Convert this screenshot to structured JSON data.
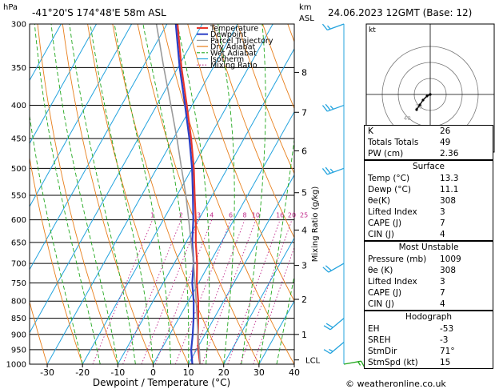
{
  "header": {
    "location": "-41°20'S  174°48'E  58m  ASL",
    "datetime": "24.06.2023  12GMT  (Base: 12)",
    "pressure_unit": "hPa",
    "height_unit_km": "km",
    "height_unit_asl": "ASL",
    "watermark": "© weatheronline.co.uk"
  },
  "chart_data": {
    "type": "line",
    "xlabel": "Dewpoint / Temperature (°C)",
    "ylabel_right": "Mixing Ratio (g/kg)",
    "pressure_levels": [
      300,
      350,
      400,
      450,
      500,
      550,
      600,
      650,
      700,
      750,
      800,
      850,
      900,
      950,
      1000
    ],
    "x_ticks": [
      -30,
      -20,
      -10,
      0,
      10,
      20,
      30,
      40
    ],
    "xlim": [
      -35,
      40
    ],
    "ylim": [
      1000,
      300
    ],
    "km_ticks": [
      {
        "km": "1",
        "p": 900
      },
      {
        "km": "2",
        "p": 795
      },
      {
        "km": "3",
        "p": 705
      },
      {
        "km": "4",
        "p": 622
      },
      {
        "km": "5",
        "p": 545
      },
      {
        "km": "6",
        "p": 470
      },
      {
        "km": "7",
        "p": 410
      },
      {
        "km": "8",
        "p": 356
      }
    ],
    "lcl": {
      "label": "LCL",
      "p": 985
    },
    "mixing_ratio_labels": [
      "1",
      "2",
      "3",
      "4",
      "6",
      "8",
      "10",
      "16",
      "20",
      "25"
    ],
    "legend": [
      {
        "name": "Temperature",
        "color": "#e8362b"
      },
      {
        "name": "Dewpoint",
        "color": "#2b3fc6"
      },
      {
        "name": "Parcel Trajectory",
        "color": "#9a9a9a"
      },
      {
        "name": "Dry Adiabat",
        "color": "#e87f1c"
      },
      {
        "name": "Wet Adiabat",
        "color": "#22a81e"
      },
      {
        "name": "Isotherm",
        "color": "#23a3de"
      },
      {
        "name": "Mixing Ratio",
        "color": "#c0298a"
      }
    ],
    "series": [
      {
        "name": "Temperature",
        "points": [
          [
            1000,
            13.3
          ],
          [
            950,
            10.5
          ],
          [
            900,
            8
          ],
          [
            850,
            5.5
          ],
          [
            800,
            2.8
          ],
          [
            750,
            -0.5
          ],
          [
            700,
            -3.5
          ],
          [
            650,
            -7.2
          ],
          [
            600,
            -10.8
          ],
          [
            550,
            -15
          ],
          [
            500,
            -19.5
          ],
          [
            450,
            -25
          ],
          [
            400,
            -31.5
          ],
          [
            350,
            -39
          ],
          [
            300,
            -47
          ]
        ]
      },
      {
        "name": "Dewpoint",
        "points": [
          [
            1000,
            11.1
          ],
          [
            950,
            8.5
          ],
          [
            900,
            6.5
          ],
          [
            850,
            4.2
          ],
          [
            800,
            1.5
          ],
          [
            750,
            -1.8
          ],
          [
            700,
            -4.5
          ],
          [
            650,
            -8.2
          ],
          [
            600,
            -11.5
          ],
          [
            550,
            -15.5
          ],
          [
            500,
            -20
          ],
          [
            450,
            -25.5
          ],
          [
            400,
            -32
          ],
          [
            350,
            -39.5
          ],
          [
            300,
            -47.5
          ]
        ]
      },
      {
        "name": "Parcel Trajectory",
        "points": [
          [
            1000,
            13.3
          ],
          [
            950,
            10.8
          ],
          [
            900,
            8
          ],
          [
            850,
            5.2
          ],
          [
            800,
            2.2
          ],
          [
            750,
            -1
          ],
          [
            700,
            -4.5
          ],
          [
            650,
            -8.5
          ],
          [
            600,
            -12.8
          ],
          [
            550,
            -17.5
          ],
          [
            500,
            -23
          ],
          [
            450,
            -29
          ],
          [
            400,
            -36
          ],
          [
            350,
            -44
          ],
          [
            300,
            -53
          ]
        ]
      }
    ]
  },
  "hodograph": {
    "unit": "kt",
    "ring_labels": [
      "20",
      "40"
    ],
    "points": [
      [
        0,
        0
      ],
      [
        -4,
        -2
      ],
      [
        -9,
        -7
      ],
      [
        -13,
        -13
      ],
      [
        -17,
        -19
      ]
    ]
  },
  "wind_barbs": [
    {
      "p": 1000,
      "dir": 80,
      "spd": 15
    },
    {
      "p": 925,
      "dir": 230,
      "spd": 15
    },
    {
      "p": 850,
      "dir": 230,
      "spd": 20
    },
    {
      "p": 700,
      "dir": 240,
      "spd": 20
    },
    {
      "p": 500,
      "dir": 250,
      "spd": 25
    },
    {
      "p": 400,
      "dir": 250,
      "spd": 25
    },
    {
      "p": 300,
      "dir": 250,
      "spd": 15
    }
  ],
  "indices": [
    {
      "label": "K",
      "value": "26"
    },
    {
      "label": "Totals Totals",
      "value": "49"
    },
    {
      "label": "PW (cm)",
      "value": "2.36"
    }
  ],
  "surface": {
    "title": "Surface",
    "rows": [
      {
        "label": "Temp (°C)",
        "value": "13.3"
      },
      {
        "label": "Dewp (°C)",
        "value": "11.1"
      },
      {
        "label": "θe(K)",
        "value": "308"
      },
      {
        "label": "Lifted Index",
        "value": "3"
      },
      {
        "label": "CAPE (J)",
        "value": "7"
      },
      {
        "label": "CIN (J)",
        "value": "4"
      }
    ]
  },
  "most_unstable": {
    "title": "Most Unstable",
    "rows": [
      {
        "label": "Pressure (mb)",
        "value": "1009"
      },
      {
        "label": "θe (K)",
        "value": "308"
      },
      {
        "label": "Lifted Index",
        "value": "3"
      },
      {
        "label": "CAPE (J)",
        "value": "7"
      },
      {
        "label": "CIN (J)",
        "value": "4"
      }
    ]
  },
  "hodograph_table": {
    "title": "Hodograph",
    "rows": [
      {
        "label": "EH",
        "value": "-53"
      },
      {
        "label": "SREH",
        "value": "-3"
      },
      {
        "label": "StmDir",
        "value": "71°"
      },
      {
        "label": "StmSpd (kt)",
        "value": "15"
      }
    ]
  }
}
